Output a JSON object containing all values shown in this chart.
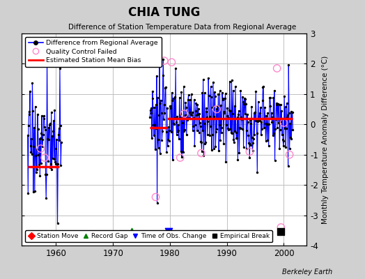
{
  "title": "CHIA TUNG",
  "subtitle": "Difference of Station Temperature Data from Regional Average",
  "ylabel": "Monthly Temperature Anomaly Difference (°C)",
  "xlabel_bottom": "Berkeley Earth",
  "xlim": [
    1954,
    2004
  ],
  "ylim": [
    -4,
    3
  ],
  "yticks": [
    -4,
    -3,
    -2,
    -1,
    0,
    1,
    2,
    3
  ],
  "xticks": [
    1960,
    1970,
    1980,
    1990,
    2000
  ],
  "bg_color": "#d0d0d0",
  "plot_bg_color": "#ffffff",
  "grid_color": "#c0c0c0",
  "segment1_start": 1955.0,
  "segment1_end": 1960.5,
  "bias1": -1.4,
  "segment2_start": 1976.5,
  "segment2_end": 1979.5,
  "bias2": -0.12,
  "segment3_start": 1979.5,
  "segment3_end": 2001.5,
  "bias3": 0.18,
  "record_gap_x": 1973.3,
  "record_gap_y": -3.55,
  "time_obs_change_x": 1979.8,
  "time_obs_change_y": -3.55,
  "empirical_break_x": 1999.5,
  "empirical_break_y": -3.55
}
